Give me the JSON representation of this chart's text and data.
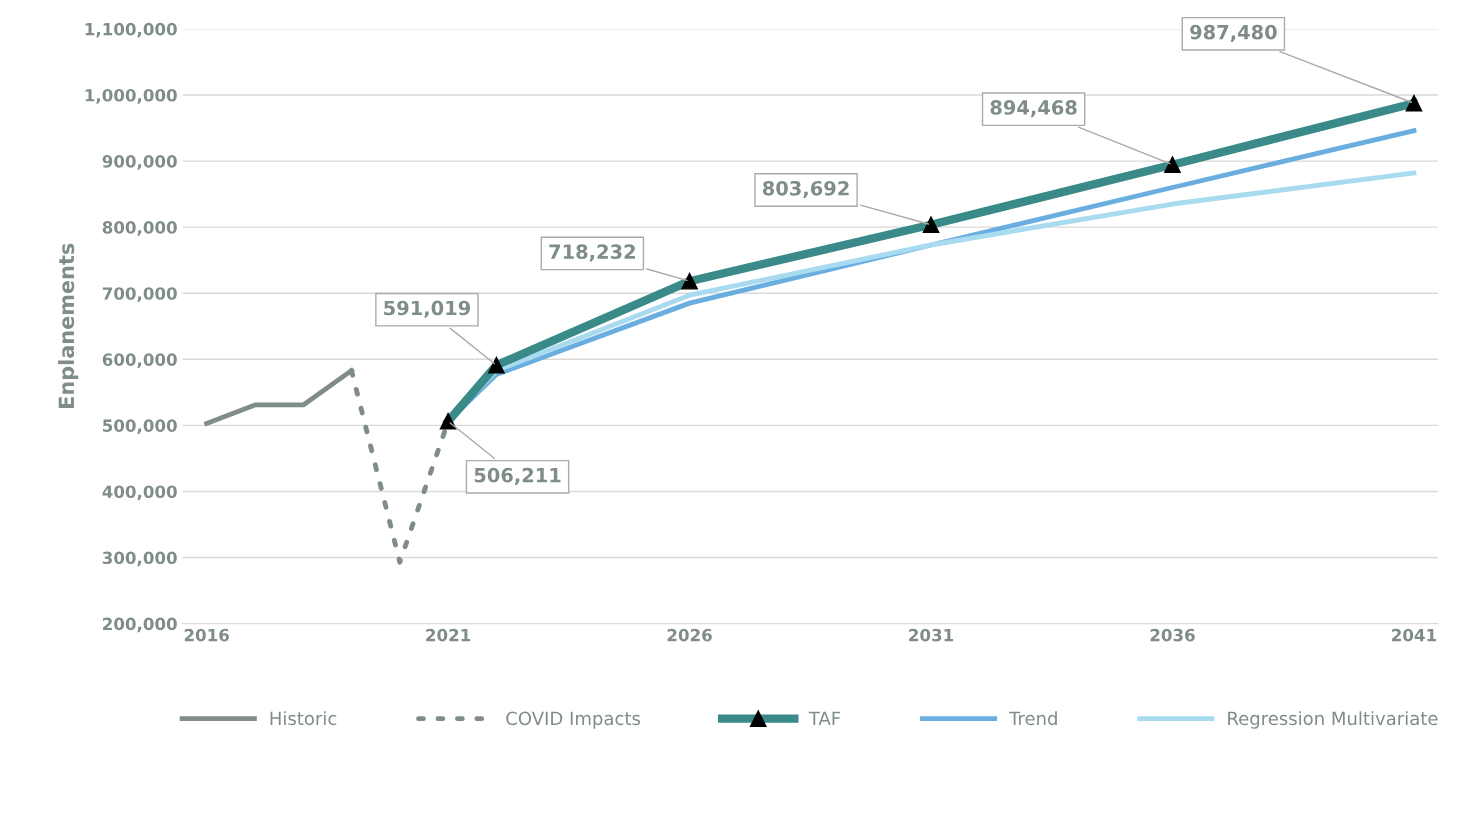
{
  "chart_data": {
    "type": "line",
    "ylabel": "Enplanements",
    "xlim": [
      2015.5,
      2041.5
    ],
    "xticks": [
      2016,
      2021,
      2026,
      2031,
      2036,
      2041
    ],
    "ylim": [
      200000,
      1100000
    ],
    "yticks": [
      {
        "value": 200000,
        "label": "200,000"
      },
      {
        "value": 300000,
        "label": "300,000"
      },
      {
        "value": 400000,
        "label": "400,000"
      },
      {
        "value": 500000,
        "label": "500,000"
      },
      {
        "value": 600000,
        "label": "600,000"
      },
      {
        "value": 700000,
        "label": "700,000"
      },
      {
        "value": 800000,
        "label": "800,000"
      },
      {
        "value": 900000,
        "label": "900,000"
      },
      {
        "value": 1000000,
        "label": "1,000,000"
      },
      {
        "value": 1100000,
        "label": "1,100,000"
      }
    ],
    "grid": "y",
    "legend": "bottom",
    "series": [
      {
        "name": "Historic",
        "color": "#7f8c8a",
        "x": [
          2016,
          2017,
          2018,
          2019
        ],
        "values": [
          503000,
          531000,
          531000,
          583000
        ],
        "line_style": "solid",
        "marker": "none"
      },
      {
        "name": "COVID Impacts",
        "color": "#7f8c8a",
        "x": [
          2019,
          2020,
          2021
        ],
        "values": [
          583000,
          293000,
          506000
        ],
        "line_style": "dotted",
        "marker": "none"
      },
      {
        "name": "TAF",
        "color": "#3a8a8a",
        "x": [
          2021,
          2022,
          2026,
          2031,
          2036,
          2041
        ],
        "values": [
          506211,
          591019,
          718232,
          803692,
          894468,
          987480
        ],
        "line_style": "solid",
        "marker": "triangle"
      },
      {
        "name": "Trend",
        "color": "#6aaee0",
        "x": [
          2021,
          2022,
          2026,
          2031,
          2036,
          2041
        ],
        "values": [
          506000,
          577000,
          685000,
          773000,
          860000,
          946000
        ],
        "line_style": "solid",
        "marker": "none"
      },
      {
        "name": "Regression Multivariate",
        "color": "#a8daf0",
        "x": [
          2021,
          2022,
          2026,
          2031,
          2036,
          2041
        ],
        "values": [
          506000,
          583000,
          697000,
          773000,
          835000,
          882000
        ],
        "line_style": "solid",
        "marker": "none"
      }
    ],
    "annotations": [
      {
        "text": "506,211",
        "x": 2021,
        "y": 506211
      },
      {
        "text": "591,019",
        "x": 2022,
        "y": 591019
      },
      {
        "text": "718,232",
        "x": 2026,
        "y": 718232
      },
      {
        "text": "803,692",
        "x": 2031,
        "y": 803692
      },
      {
        "text": "894,468",
        "x": 2036,
        "y": 894468
      },
      {
        "text": "987,480",
        "x": 2041,
        "y": 987480
      }
    ]
  }
}
